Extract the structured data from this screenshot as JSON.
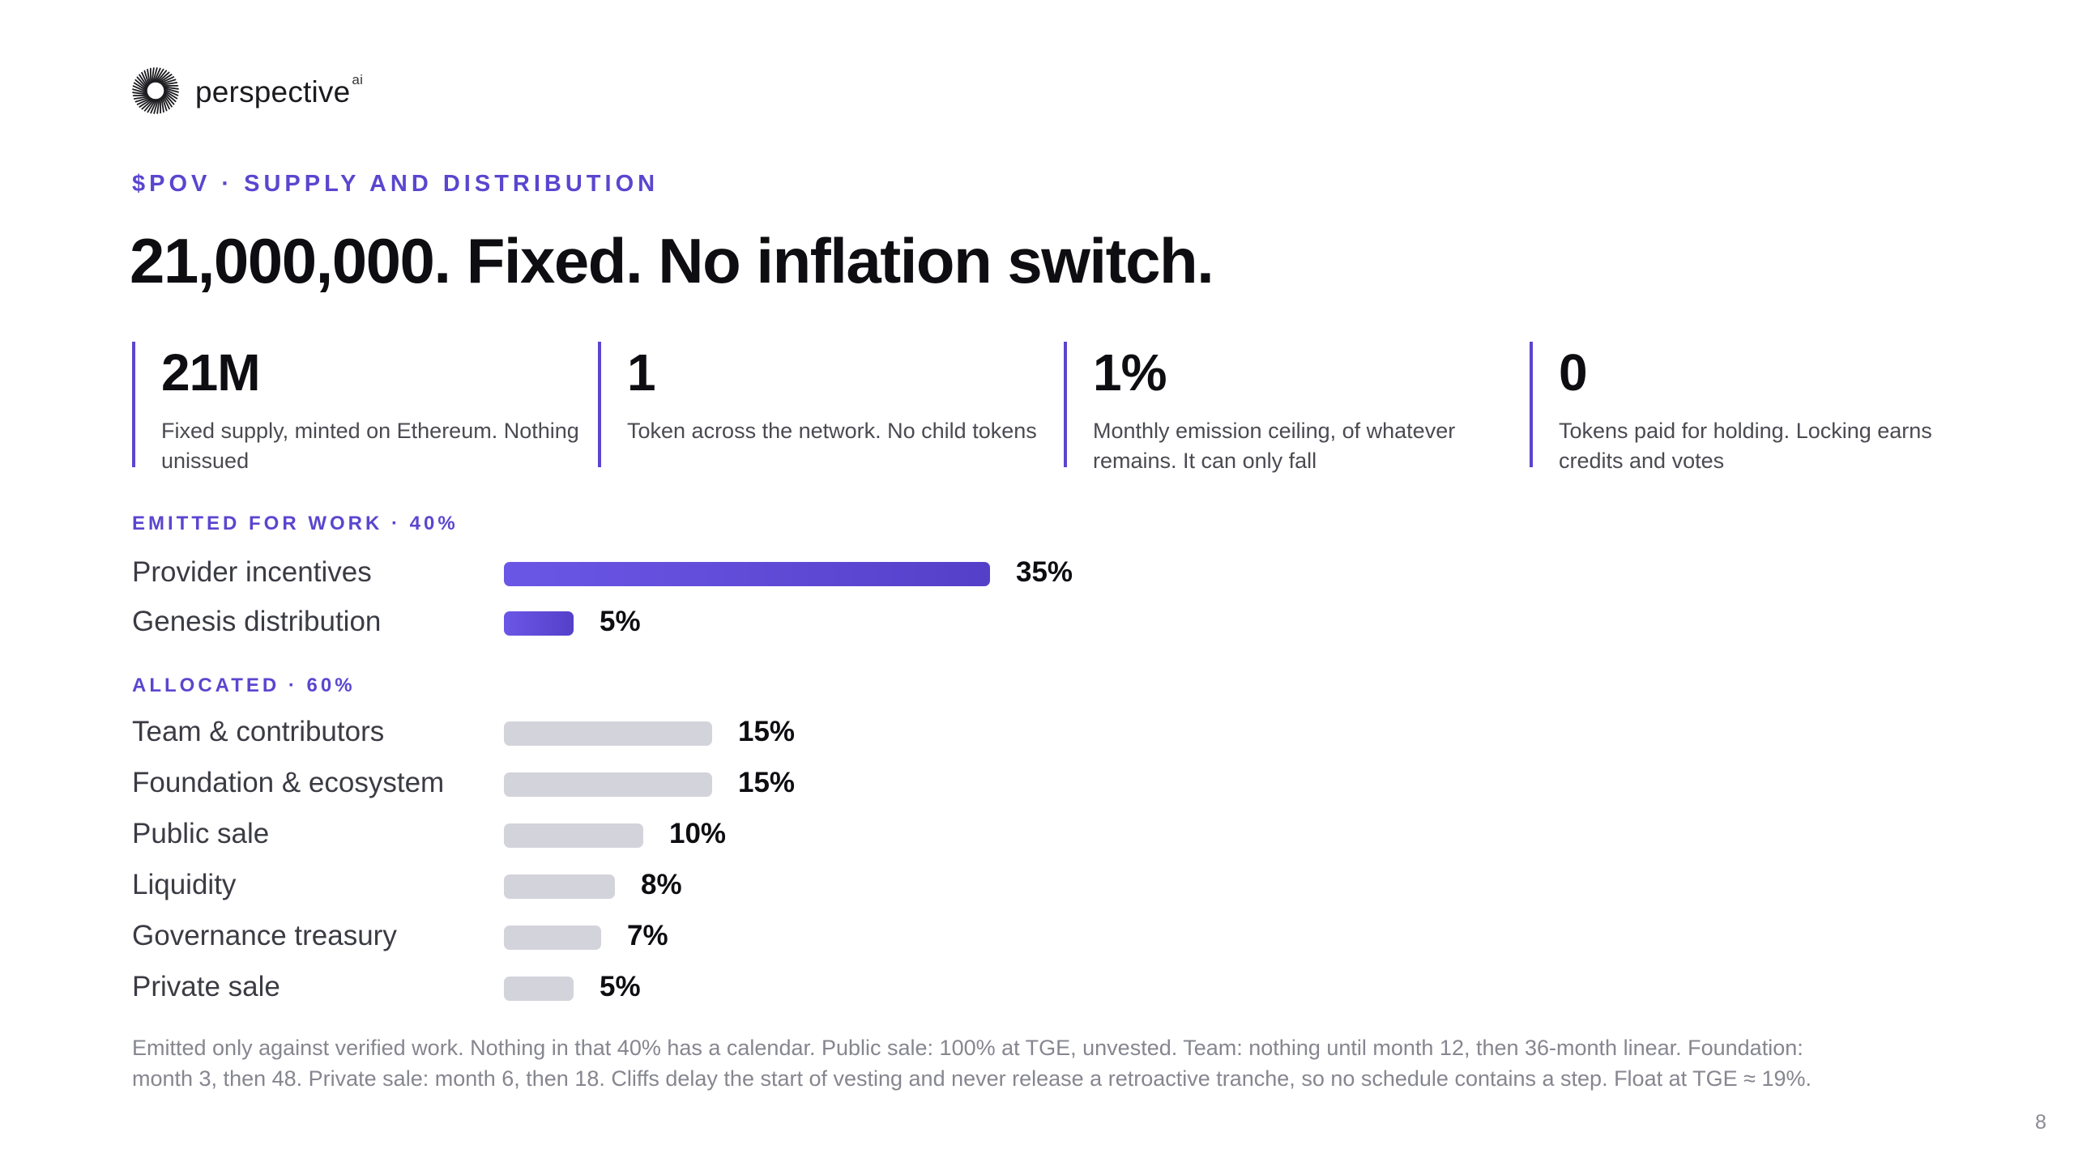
{
  "brand": {
    "name": "perspective",
    "superscript": "ai",
    "logo_icon": "sunburst-logo-icon"
  },
  "eyebrow": "$POV · SUPPLY AND DISTRIBUTION",
  "headline": "21,000,000. Fixed. No inflation switch.",
  "stats": [
    {
      "value": "21M",
      "description": "Fixed supply, minted on Ethereum. Nothing unissued"
    },
    {
      "value": "1",
      "description": "Token across the network. No child tokens"
    },
    {
      "value": "1%",
      "description": "Monthly emission ceiling, of whatever remains. It can only fall"
    },
    {
      "value": "0",
      "description": "Tokens paid for holding. Locking earns credits and votes"
    }
  ],
  "emitted": {
    "label": "EMITTED FOR WORK · 40%",
    "rows": [
      {
        "name": "Provider incentives",
        "percent": 35,
        "value_label": "35%"
      },
      {
        "name": "Genesis distribution",
        "percent": 5,
        "value_label": "5%"
      }
    ]
  },
  "allocated": {
    "label": "ALLOCATED · 60%",
    "rows": [
      {
        "name": "Team & contributors",
        "percent": 15,
        "value_label": "15%"
      },
      {
        "name": "Foundation & ecosystem",
        "percent": 15,
        "value_label": "15%"
      },
      {
        "name": "Public sale",
        "percent": 10,
        "value_label": "10%"
      },
      {
        "name": "Liquidity",
        "percent": 8,
        "value_label": "8%"
      },
      {
        "name": "Governance treasury",
        "percent": 7,
        "value_label": "7%"
      },
      {
        "name": "Private sale",
        "percent": 5,
        "value_label": "5%"
      }
    ]
  },
  "footnote": "Emitted only against verified work. Nothing in that 40% has a calendar. Public sale: 100% at TGE, unvested. Team: nothing until month 12, then 36-month linear. Foundation: month 3, then 48. Private sale: month 6, then 18. Cliffs delay the start of vesting and never release a retroactive tranche, so no schedule contains a step. Float at TGE ≈ 19%.",
  "page_number": "8",
  "colors": {
    "accent": "#5a46cf",
    "bar_work": "#6b57e6",
    "bar_allocated": "#d3d3db"
  }
}
